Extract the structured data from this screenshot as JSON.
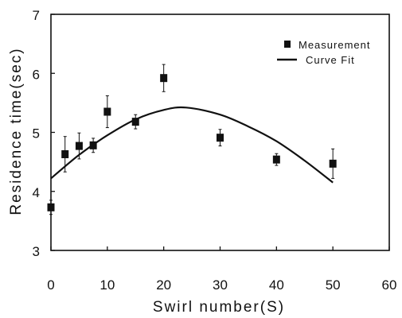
{
  "chart_data": {
    "type": "scatter",
    "xlabel": "Swirl number(S)",
    "ylabel": "Residence time(sec)",
    "xlim": [
      0,
      60
    ],
    "ylim": [
      3,
      7
    ],
    "xticks": [
      0,
      10,
      20,
      30,
      40,
      50,
      60
    ],
    "yticks": [
      3,
      4,
      5,
      6,
      7
    ],
    "grid": false,
    "legend_position": "top-right",
    "series": [
      {
        "name": "Measurement",
        "kind": "scatter-errorbar",
        "marker": "square",
        "x": [
          0,
          2.5,
          5,
          7.5,
          10,
          15,
          20,
          30,
          40,
          50
        ],
        "y": [
          3.73,
          4.63,
          4.77,
          4.78,
          5.35,
          5.18,
          5.92,
          4.91,
          4.54,
          4.47
        ],
        "yerr": [
          0.12,
          0.3,
          0.22,
          0.12,
          0.27,
          0.12,
          0.23,
          0.14,
          0.1,
          0.25
        ]
      },
      {
        "name": "Curve Fit",
        "kind": "line",
        "x": [
          0,
          5,
          10,
          15,
          20,
          24,
          30,
          35,
          40,
          45,
          50
        ],
        "y": [
          4.22,
          4.62,
          4.95,
          5.22,
          5.38,
          5.42,
          5.3,
          5.1,
          4.85,
          4.52,
          4.15
        ]
      }
    ]
  },
  "colors": {
    "ink": "#111111"
  }
}
